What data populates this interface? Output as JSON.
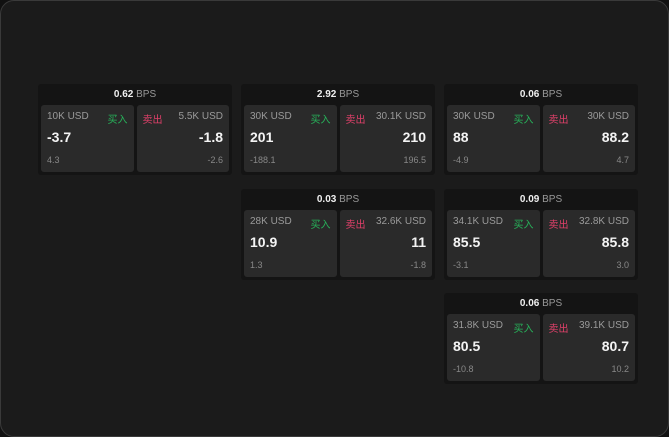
{
  "unit": "BPS",
  "colors": {
    "buy": "#27b35a",
    "sell": "#e0406a"
  },
  "cards": [
    {
      "spread": "0.62",
      "buy": {
        "label": "买入",
        "size": "10K USD",
        "price": "-3.7",
        "delta": "4.3"
      },
      "sell": {
        "label": "卖出",
        "size": "5.5K USD",
        "price": "-1.8",
        "delta": "-2.6"
      }
    },
    {
      "spread": "2.92",
      "buy": {
        "label": "买入",
        "size": "30K USD",
        "price": "201",
        "delta": "-188.1"
      },
      "sell": {
        "label": "卖出",
        "size": "30.1K USD",
        "price": "210",
        "delta": "196.5"
      }
    },
    {
      "spread": "0.06",
      "buy": {
        "label": "买入",
        "size": "30K USD",
        "price": "88",
        "delta": "-4.9"
      },
      "sell": {
        "label": "卖出",
        "size": "30K USD",
        "price": "88.2",
        "delta": "4.7"
      }
    },
    {
      "spread": "0.03",
      "buy": {
        "label": "买入",
        "size": "28K USD",
        "price": "10.9",
        "delta": "1.3"
      },
      "sell": {
        "label": "卖出",
        "size": "32.6K USD",
        "price": "11",
        "delta": "-1.8"
      }
    },
    {
      "spread": "0.09",
      "buy": {
        "label": "买入",
        "size": "34.1K USD",
        "price": "85.5",
        "delta": "-3.1"
      },
      "sell": {
        "label": "卖出",
        "size": "32.8K USD",
        "price": "85.8",
        "delta": "3.0"
      }
    },
    {
      "spread": "0.06",
      "buy": {
        "label": "买入",
        "size": "31.8K USD",
        "price": "80.5",
        "delta": "-10.8"
      },
      "sell": {
        "label": "卖出",
        "size": "39.1K USD",
        "price": "80.7",
        "delta": "10.2"
      }
    }
  ]
}
